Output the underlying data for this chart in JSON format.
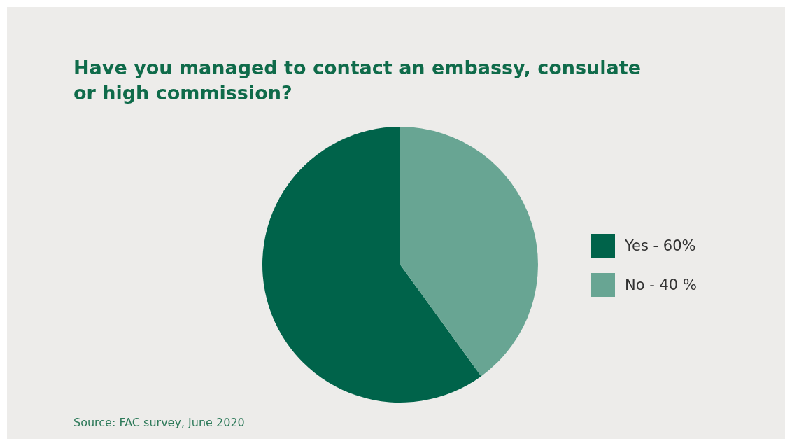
{
  "chart_data": {
    "type": "pie",
    "title": "Have you managed to contact an embassy, consulate or high commission?",
    "categories": [
      "Yes - 60%",
      "No - 40 %"
    ],
    "values": [
      60,
      40
    ],
    "colors": [
      "#00634a",
      "#68a593"
    ],
    "legend": "right",
    "annotations": [
      "Source: FAC survey, June 2020"
    ]
  }
}
